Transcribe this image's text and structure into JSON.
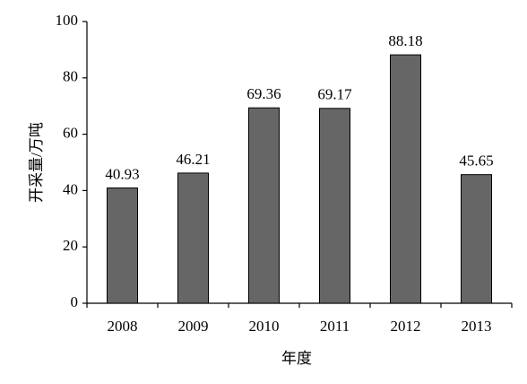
{
  "chart_data": {
    "type": "bar",
    "x_label": "年度",
    "y_label": "开采量/万吨",
    "categories": [
      "2008",
      "2009",
      "2010",
      "2011",
      "2012",
      "2013"
    ],
    "values": [
      40.93,
      46.21,
      69.36,
      69.17,
      88.18,
      45.65
    ],
    "color": "#666666",
    "ylim": [
      0,
      100
    ],
    "yticks": [
      0,
      20,
      40,
      60,
      80,
      100
    ]
  }
}
